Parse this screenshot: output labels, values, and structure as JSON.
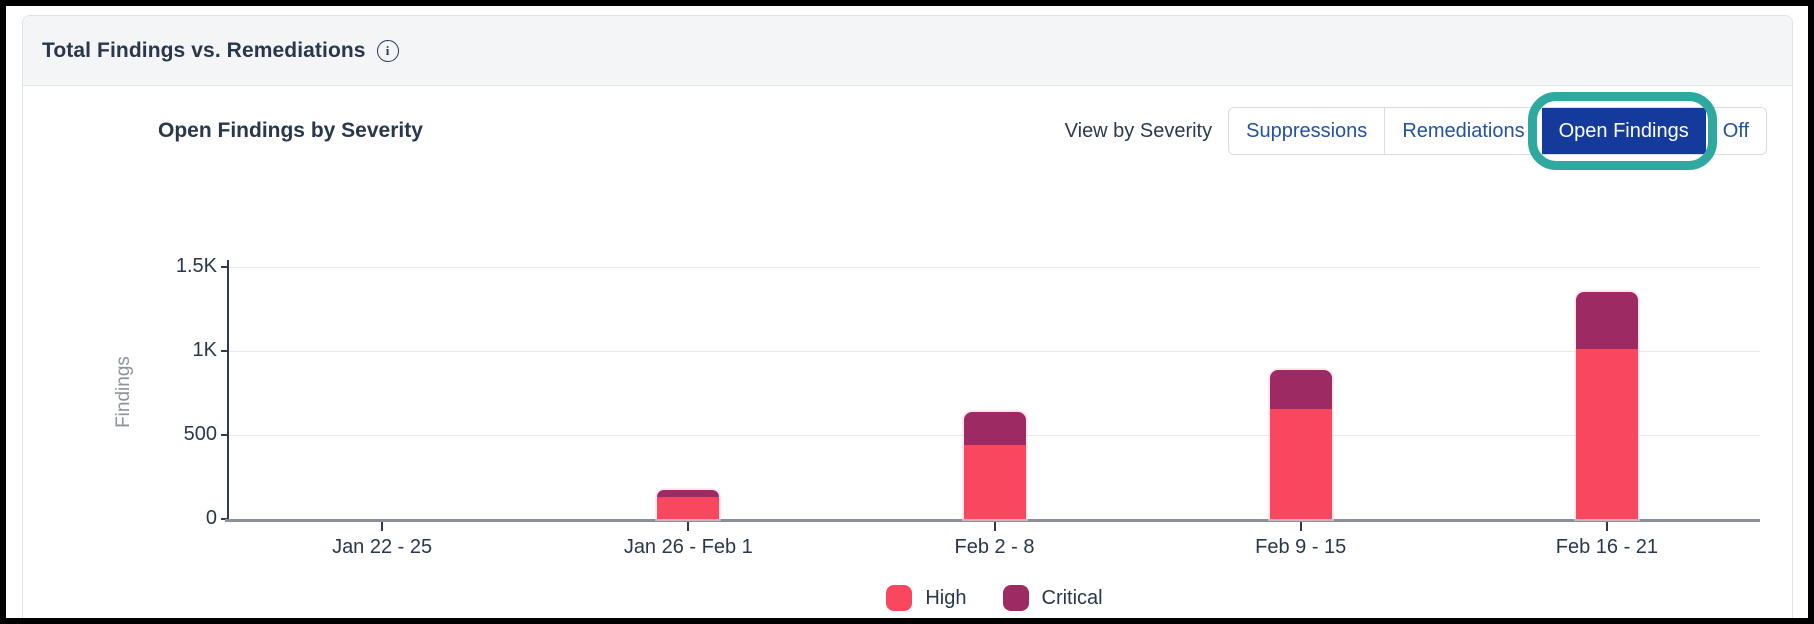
{
  "header": {
    "title": "Total Findings vs. Remediations",
    "info_icon": "info-circle-icon"
  },
  "panel": {
    "subtitle": "Open Findings by Severity",
    "view_by_label": "View by Severity",
    "toggle_options": [
      {
        "label": "Suppressions",
        "selected": false
      },
      {
        "label": "Remediations",
        "selected": false
      },
      {
        "label": "Open Findings",
        "selected": true,
        "highlighted": true
      },
      {
        "label": "Off",
        "selected": false
      }
    ]
  },
  "colors": {
    "high": "#f8475f",
    "critical": "#9e2a64",
    "selected_button_bg": "#143a9c",
    "link_blue": "#2152a3",
    "highlight_teal": "#2fa9a0",
    "header_bg": "#f4f5f7",
    "text_dark": "#28374b"
  },
  "chart_data": {
    "type": "bar",
    "stacked": true,
    "title": "Open Findings by Severity",
    "categories": [
      "Jan 22 - 25",
      "Jan 26 - Feb 1",
      "Feb 2 - 8",
      "Feb 9 - 15",
      "Feb 16 - 21"
    ],
    "series": [
      {
        "name": "High",
        "color": "#f8475f",
        "values": [
          0,
          130,
          440,
          655,
          1010
        ]
      },
      {
        "name": "Critical",
        "color": "#9e2a64",
        "values": [
          0,
          45,
          195,
          235,
          340
        ]
      }
    ],
    "xlabel": "",
    "ylabel": "Findings",
    "ylim": [
      0,
      1500
    ],
    "yticks": [
      {
        "value": 1500,
        "label": "1.5K"
      },
      {
        "value": 1000,
        "label": "1K"
      },
      {
        "value": 500,
        "label": "500"
      },
      {
        "value": 0,
        "label": "0"
      }
    ],
    "grid": true,
    "legend_position": "bottom"
  }
}
